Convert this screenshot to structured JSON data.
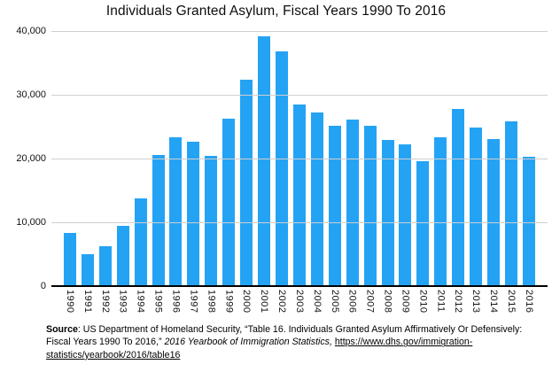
{
  "title": "Individuals Granted Asylum, Fiscal Years 1990 To 2016",
  "colors": {
    "bar_fill": "#24a3f5",
    "gridline": "#cfcfcf",
    "axis_line": "#000000",
    "text": "#000000"
  },
  "y_axis": {
    "tick_labels": [
      "40,000",
      "30,000",
      "20,000",
      "10,000",
      "0"
    ]
  },
  "chart_data": {
    "type": "bar",
    "title": "Individuals Granted Asylum, Fiscal Years 1990 To 2016",
    "xlabel": "",
    "ylabel": "",
    "ylim": [
      0,
      40000
    ],
    "gridlines": [
      10000,
      20000,
      30000,
      40000
    ],
    "legend": "none",
    "categories": [
      "1990",
      "1991",
      "1992",
      "1993",
      "1994",
      "1995",
      "1996",
      "1997",
      "1998",
      "1999",
      "2000",
      "2001",
      "2002",
      "2003",
      "2004",
      "2005",
      "2006",
      "2007",
      "2008",
      "2009",
      "2010",
      "2011",
      "2012",
      "2013",
      "2014",
      "2015",
      "2016"
    ],
    "values": [
      8400,
      5000,
      6200,
      9400,
      13700,
      20500,
      23300,
      22700,
      20400,
      26300,
      32400,
      39100,
      36800,
      28500,
      27200,
      25100,
      26100,
      25200,
      22900,
      22200,
      19600,
      23400,
      27800,
      24800,
      23100,
      25800,
      20300
    ]
  },
  "footer": {
    "source_label": "Source",
    "text_main": ": US Department of Homeland Security, “Table 16. Individuals Granted Asylum Affirmatively Or Defensively: Fiscal Years 1990 To 2016,” ",
    "text_italic": "2016 Yearbook of Immigration Statistics,",
    "link_text": "https://www.dhs.gov/immigration-statistics/yearbook/2016/table16"
  }
}
